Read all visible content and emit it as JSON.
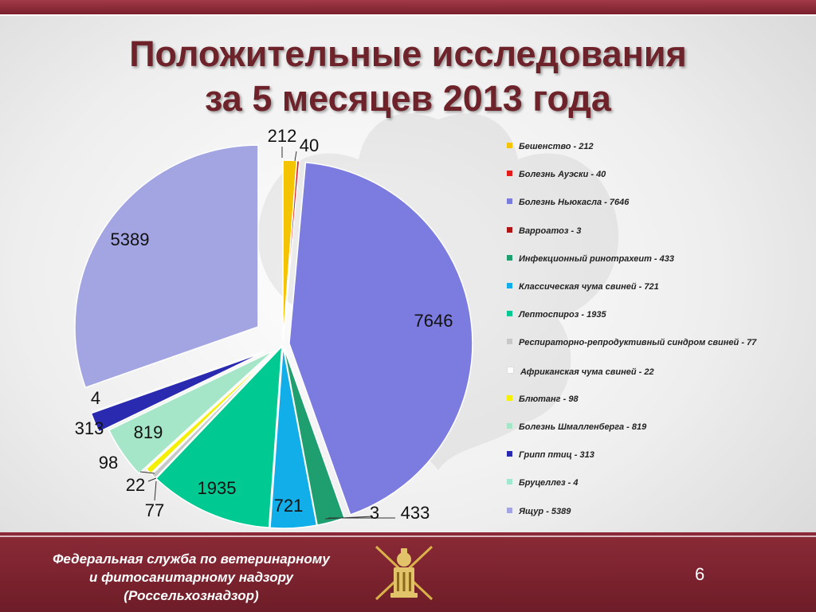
{
  "title": {
    "line1": "Положительные исследования",
    "line2": "за 5 месяцев 2013 года"
  },
  "footer": {
    "line1": "Федеральная служба по ветеринарному",
    "line2": "и фитосанитарному надзору",
    "line3": "(Россельхознадзор)",
    "page_number": "6"
  },
  "chart_data": {
    "type": "pie",
    "legend_position": "right",
    "slices": [
      {
        "label": "Бешенство",
        "value": 212,
        "color": "#f5c400",
        "legend": "Бешенство - 212"
      },
      {
        "label": "Болезнь Ауэски",
        "value": 40,
        "color": "#e21b1b",
        "legend": "Болезнь Ауэски - 40"
      },
      {
        "label": "Болезнь Ньюкасла",
        "value": 7646,
        "color": "#7b7be0",
        "legend": "Болезнь Ньюкасла - 7646"
      },
      {
        "label": "Варроатоз",
        "value": 3,
        "color": "#b01515",
        "legend": "Варроатоз - 3"
      },
      {
        "label": "Инфекционный ринотрахеит",
        "value": 433,
        "color": "#1f9f70",
        "legend": "Инфекционный ринотрахеит - 433"
      },
      {
        "label": "Классическая чума свиней",
        "value": 721,
        "color": "#12aeea",
        "legend": "Классическая чума свиней - 721"
      },
      {
        "label": "Лептоспироз",
        "value": 1935,
        "color": "#00c992",
        "legend": "Лептоспироз - 1935"
      },
      {
        "label": "Респираторно-репродуктивный синдром свиней",
        "value": 77,
        "color": "#c8c8c8",
        "legend": "Респираторно-репродуктивный синдром свиней - 77"
      },
      {
        "label": "Африканская чума свиней",
        "value": 22,
        "color": "#ffffff",
        "legend": "Африканская чума свиней - 22"
      },
      {
        "label": "Блютанг",
        "value": 98,
        "color": "#f4f000",
        "legend": "Блютанг - 98"
      },
      {
        "label": "Болезнь Шмалленберга",
        "value": 819,
        "color": "#a6e6c8",
        "legend": "Болезнь Шмалленберга - 819"
      },
      {
        "label": "Грипп птиц",
        "value": 313,
        "color": "#2a2ab0",
        "legend": "Грипп птиц - 313"
      },
      {
        "label": "Бруцеллез",
        "value": 4,
        "color": "#9fe8cf",
        "legend": "Бруцеллез - 4"
      },
      {
        "label": "Ящур",
        "value": 5389,
        "color": "#a3a5e3",
        "legend": "Ящур - 5389"
      }
    ]
  }
}
